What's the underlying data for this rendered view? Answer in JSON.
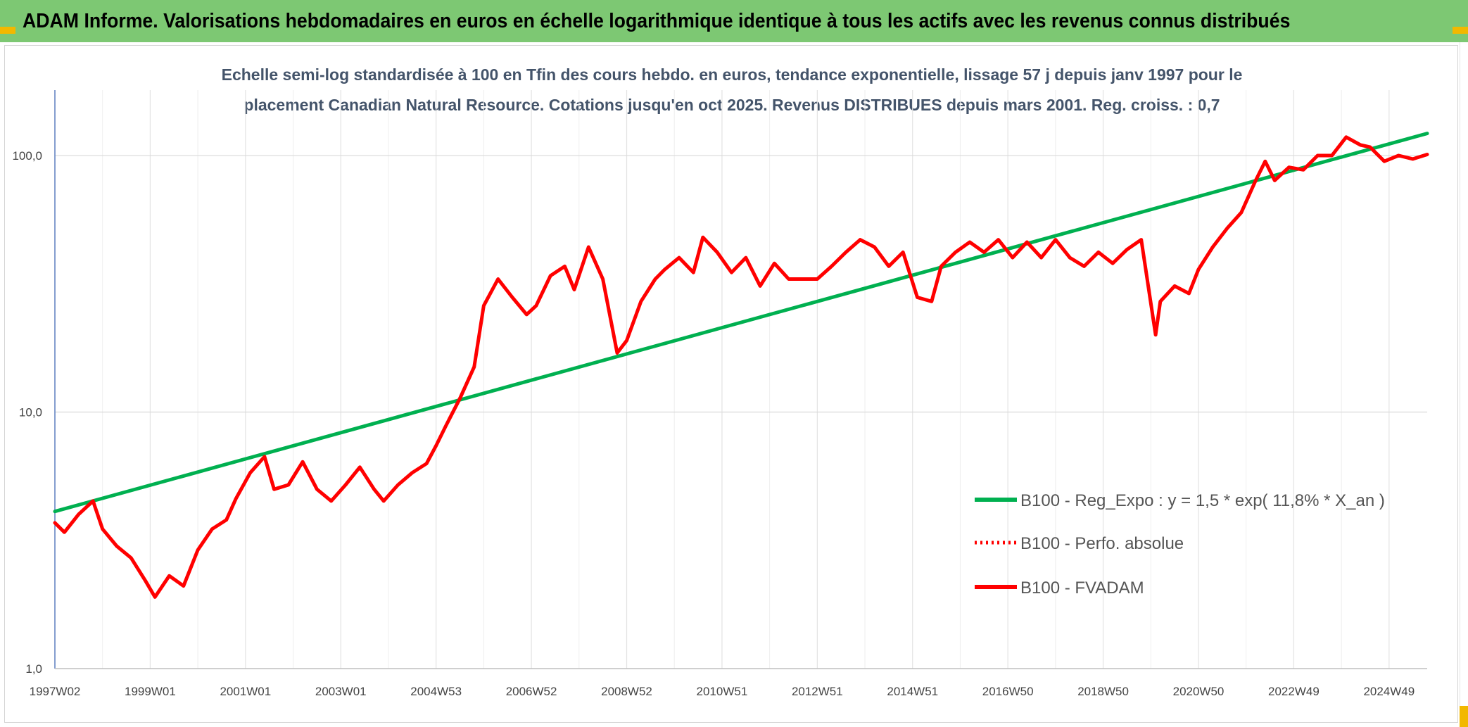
{
  "banner": {
    "title": "ADAM Informe. Valorisations hebdomadaires en euros en échelle logarithmique identique à tous les actifs avec les revenus connus distribués",
    "background": "#7dc873",
    "accent": "#f2b800"
  },
  "chart_data": {
    "type": "line",
    "title_lines": [
      "Echelle semi-log standardisée à 100 en Tfin des cours hebdo. en euros, tendance exponentielle, lissage 57 j depuis janv 1997 pour le",
      "placement Canadian Natural Resource. Cotations jusqu'en oct 2025. Revenus DISTRIBUES depuis mars 2001. Reg. croiss. : 0,7"
    ],
    "xlabel": "",
    "ylabel": "",
    "y_scale": "log",
    "ylim": [
      1,
      180
    ],
    "xlim": [
      1997.0,
      2025.8
    ],
    "y_ticks": [
      "1,0",
      "10,0",
      "100,0"
    ],
    "y_tick_values": [
      1,
      10,
      100
    ],
    "x_ticks": [
      "1997W02",
      "1999W01",
      "2001W01",
      "2003W01",
      "2004W53",
      "2006W52",
      "2008W52",
      "2010W51",
      "2012W51",
      "2014W51",
      "2016W50",
      "2018W50",
      "2020W50",
      "2022W49",
      "2024W49"
    ],
    "x_tick_values": [
      1997.0,
      1999.0,
      2001.0,
      2003.0,
      2005.0,
      2007.0,
      2009.0,
      2011.0,
      2013.0,
      2015.0,
      2017.0,
      2019.0,
      2021.0,
      2023.0,
      2025.0
    ],
    "grid": true,
    "legend_position": "lower-right",
    "series": [
      {
        "name": "B100 - Reg_Expo : y = 1,5 * exp( 11,8% *  X_an )",
        "color": "#00b050",
        "style": "solid",
        "x": [
          1997.0,
          2025.8
        ],
        "y": [
          4.1,
          122
        ]
      },
      {
        "name": "B100 - Perfo. absolue",
        "color": "#ff0000",
        "style": "dotted",
        "x": [],
        "y": []
      },
      {
        "name": "B100 - FVADAM",
        "color": "#ff0000",
        "style": "solid",
        "x": [
          1997.0,
          1997.2,
          1997.5,
          1997.8,
          1998.0,
          1998.3,
          1998.6,
          1998.9,
          1999.1,
          1999.4,
          1999.7,
          2000.0,
          2000.3,
          2000.6,
          2000.8,
          2001.1,
          2001.4,
          2001.6,
          2001.9,
          2002.2,
          2002.5,
          2002.8,
          2003.1,
          2003.4,
          2003.7,
          2003.9,
          2004.2,
          2004.5,
          2004.8,
          2005.0,
          2005.2,
          2005.5,
          2005.8,
          2006.0,
          2006.3,
          2006.6,
          2006.9,
          2007.1,
          2007.4,
          2007.7,
          2007.9,
          2008.2,
          2008.5,
          2008.8,
          2009.0,
          2009.3,
          2009.6,
          2009.8,
          2010.1,
          2010.4,
          2010.6,
          2010.9,
          2011.2,
          2011.5,
          2011.8,
          2012.1,
          2012.4,
          2012.7,
          2013.0,
          2013.3,
          2013.6,
          2013.9,
          2014.2,
          2014.5,
          2014.8,
          2015.1,
          2015.4,
          2015.6,
          2015.9,
          2016.2,
          2016.5,
          2016.8,
          2017.1,
          2017.4,
          2017.7,
          2018.0,
          2018.3,
          2018.6,
          2018.9,
          2019.2,
          2019.5,
          2019.8,
          2020.1,
          2020.2,
          2020.5,
          2020.8,
          2021.0,
          2021.3,
          2021.6,
          2021.9,
          2022.2,
          2022.4,
          2022.6,
          2022.9,
          2023.2,
          2023.5,
          2023.8,
          2024.1,
          2024.4,
          2024.6,
          2024.9,
          2025.2,
          2025.5,
          2025.8
        ],
        "y": [
          3.7,
          3.4,
          4.0,
          4.5,
          3.5,
          3.0,
          2.7,
          2.2,
          1.9,
          2.3,
          2.1,
          2.9,
          3.5,
          3.8,
          4.6,
          5.8,
          6.7,
          5.0,
          5.2,
          6.4,
          5.0,
          4.5,
          5.2,
          6.1,
          5.0,
          4.5,
          5.2,
          5.8,
          6.3,
          7.4,
          8.8,
          11.3,
          15.0,
          26.0,
          33.0,
          28.0,
          24.0,
          26.0,
          34.0,
          37.0,
          30.0,
          44.0,
          33.0,
          17.0,
          19.0,
          27.0,
          33.0,
          36.0,
          40.0,
          35.0,
          48.0,
          42.0,
          35.0,
          40.0,
          31.0,
          38.0,
          33.0,
          33.0,
          33.0,
          37.0,
          42.0,
          47.0,
          44.0,
          37.0,
          42.0,
          28.0,
          27.0,
          37.0,
          42.0,
          46.0,
          42.0,
          47.0,
          40.0,
          46.0,
          40.0,
          47.0,
          40.0,
          37.0,
          42.0,
          38.0,
          43.0,
          47.0,
          20.0,
          27.0,
          31.0,
          29.0,
          36.0,
          44.0,
          52.0,
          60.0,
          80.0,
          95.0,
          80.0,
          90.0,
          88.0,
          100.0,
          100.0,
          118.0,
          110.0,
          108.0,
          95.0,
          100.0,
          97.0,
          101.0
        ]
      }
    ]
  }
}
